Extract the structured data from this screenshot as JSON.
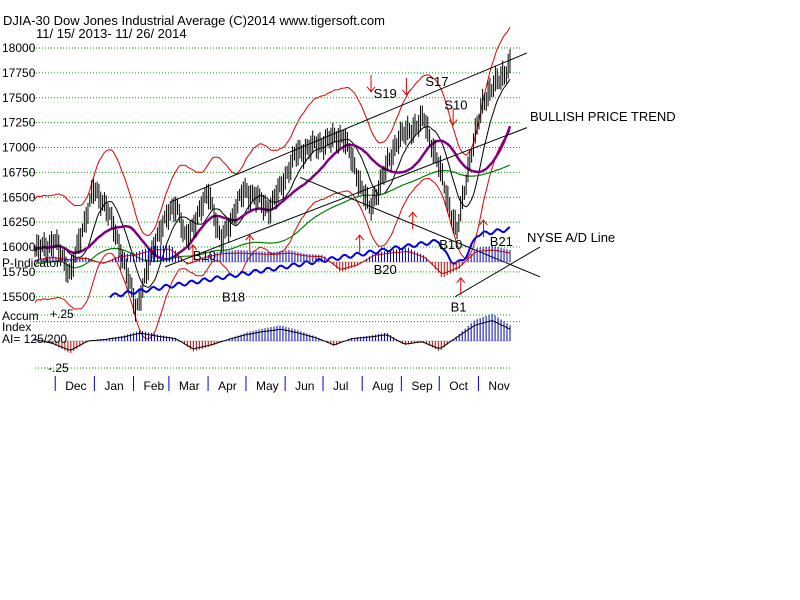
{
  "header": {
    "title": "DJIA-30  Dow Jones Industrial Average   (C)2014 www.tigersoft.com",
    "date_range": "11/ 15/ 2013- 11/ 26/ 2014"
  },
  "colors": {
    "price": "#000000",
    "grid": "#00a000",
    "moving_avg_purple": "#800080",
    "moving_avg_green": "#008000",
    "band": "#e00000",
    "ad_line": "#0000e0",
    "positive_hist": "#0000c0",
    "negative_hist": "#c00000"
  },
  "chart_data": [
    {
      "type": "line",
      "name": "price-panel",
      "ylim": [
        15250,
        18100
      ],
      "y_ticks": [
        "18000",
        "17750",
        "17500",
        "17250",
        "17000",
        "16750",
        "16500",
        "16250",
        "16000",
        "15750",
        "15500"
      ],
      "y_tick_values": [
        18000,
        17750,
        17500,
        17250,
        17000,
        16750,
        16500,
        16250,
        16000,
        15750,
        15500
      ],
      "x_months": [
        "Dec",
        "Jan",
        "Feb",
        "Mar",
        "Apr",
        "May",
        "Jun",
        "Jul",
        "Aug",
        "Sep",
        "Oct",
        "Nov"
      ],
      "close": [
        {
          "date": "2013-11-15",
          "value": 15960
        },
        {
          "date": "2013-12-01",
          "value": 16050
        },
        {
          "date": "2013-12-13",
          "value": 15730
        },
        {
          "date": "2013-12-31",
          "value": 16570
        },
        {
          "date": "2014-01-10",
          "value": 16430
        },
        {
          "date": "2014-01-24",
          "value": 15880
        },
        {
          "date": "2014-02-03",
          "value": 15370
        },
        {
          "date": "2014-02-20",
          "value": 16130
        },
        {
          "date": "2014-03-07",
          "value": 16450
        },
        {
          "date": "2014-03-14",
          "value": 16060
        },
        {
          "date": "2014-04-02",
          "value": 16560
        },
        {
          "date": "2014-04-11",
          "value": 16040
        },
        {
          "date": "2014-04-30",
          "value": 16580
        },
        {
          "date": "2014-05-20",
          "value": 16380
        },
        {
          "date": "2014-06-10",
          "value": 16940
        },
        {
          "date": "2014-07-03",
          "value": 17060
        },
        {
          "date": "2014-07-17",
          "value": 17120
        },
        {
          "date": "2014-08-07",
          "value": 16370
        },
        {
          "date": "2014-08-29",
          "value": 17080
        },
        {
          "date": "2014-09-19",
          "value": 17280
        },
        {
          "date": "2014-10-01",
          "value": 16800
        },
        {
          "date": "2014-10-15",
          "value": 16140
        },
        {
          "date": "2014-10-24",
          "value": 16800
        },
        {
          "date": "2014-11-05",
          "value": 17480
        },
        {
          "date": "2014-11-26",
          "value": 17830
        }
      ],
      "signals": [
        "S19",
        "S17",
        "S10",
        "B10",
        "B10",
        "B18",
        "B20",
        "B10",
        "B1",
        "B21"
      ],
      "annotations": [
        "BULLISH PRICE TREND",
        "NYSE A/D Line"
      ]
    },
    {
      "type": "area",
      "name": "P-Indicator",
      "label": "P-Indicator",
      "values": [
        0.1,
        0.3,
        0.15,
        0.25,
        -0.1,
        0.35,
        0.5,
        0.8,
        0.85,
        -0.15,
        0.3,
        0.55,
        0.6,
        0.55,
        0.5,
        0.6,
        0.4,
        0.35,
        -0.5,
        -0.2,
        0.45,
        0.6,
        0.7,
        0.3,
        -0.8,
        -0.35,
        0.7,
        0.8,
        0.6
      ]
    },
    {
      "type": "area",
      "name": "accum-index",
      "label_lines": [
        "Accum",
        "Index",
        "AI= 125/200"
      ],
      "y_ticks": [
        "+.25",
        "-.25"
      ],
      "y_tick_values": [
        0.25,
        -0.25
      ],
      "values": [
        0.02,
        -0.03,
        -0.12,
        0.0,
        0.02,
        0.05,
        0.1,
        0.06,
        0.03,
        -0.1,
        -0.05,
        0.02,
        0.08,
        0.12,
        0.15,
        0.1,
        0.04,
        -0.05,
        0.03,
        0.05,
        0.08,
        -0.04,
        -0.01,
        -0.1,
        0.05,
        0.2,
        0.26,
        0.15
      ]
    }
  ]
}
